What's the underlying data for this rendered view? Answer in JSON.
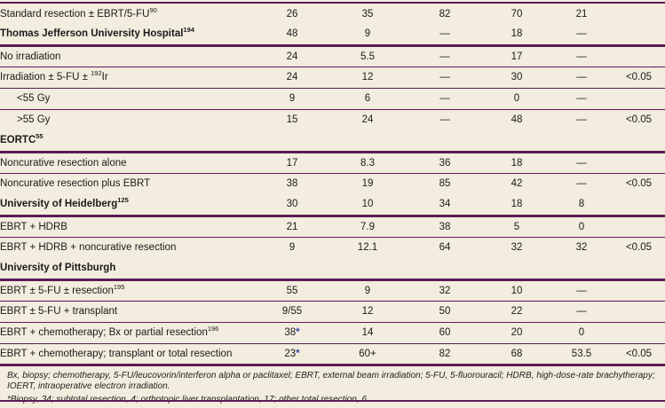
{
  "colors": {
    "background": "#f2edde",
    "rule_purple": "#5c1b55",
    "text": "#1a1a1a",
    "asterisk_blue": "#3949ab"
  },
  "table": {
    "rows": [
      {
        "label_pre": "Standard resection ± EBRT/5-FU",
        "label_sup": "90",
        "label_post": "",
        "bold": false,
        "indent": false,
        "cells": [
          "26",
          "35",
          "82",
          "70",
          "21",
          ""
        ],
        "rule": "none"
      },
      {
        "label_pre": "Thomas Jefferson University Hospital",
        "label_sup": "194",
        "label_post": "",
        "bold": true,
        "indent": false,
        "cells": [
          "48",
          "9",
          "—",
          "18",
          "—",
          ""
        ],
        "rule": "thick"
      },
      {
        "label_pre": "No irradiation",
        "label_sup": "",
        "label_post": "",
        "bold": false,
        "indent": false,
        "cells": [
          "24",
          "5.5",
          "—",
          "17",
          "—",
          ""
        ],
        "rule": "thin"
      },
      {
        "label_pre": "Irradiation ± 5-FU ± ",
        "label_sup": "192",
        "label_post": "Ir",
        "bold": false,
        "indent": false,
        "cells": [
          "24",
          "12",
          "—",
          "30",
          "—",
          "<0.05"
        ],
        "rule": "thin"
      },
      {
        "label_pre": "<55 Gy",
        "label_sup": "",
        "label_post": "",
        "bold": false,
        "indent": true,
        "cells": [
          "9",
          "6",
          "—",
          "0",
          "—",
          ""
        ],
        "rule": "thin"
      },
      {
        "label_pre": ">55 Gy",
        "label_sup": "",
        "label_post": "",
        "bold": false,
        "indent": true,
        "cells": [
          "15",
          "24",
          "—",
          "48",
          "—",
          "<0.05"
        ],
        "rule": "none"
      },
      {
        "label_pre": "EORTC",
        "label_sup": "55",
        "label_post": "",
        "bold": true,
        "indent": false,
        "cells": [
          "",
          "",
          "",
          "",
          "",
          ""
        ],
        "rule": "thick"
      },
      {
        "label_pre": "Noncurative resection alone",
        "label_sup": "",
        "label_post": "",
        "bold": false,
        "indent": false,
        "cells": [
          "17",
          "8.3",
          "36",
          "18",
          "—",
          ""
        ],
        "rule": "thin"
      },
      {
        "label_pre": "Noncurative resection plus EBRT",
        "label_sup": "",
        "label_post": "",
        "bold": false,
        "indent": false,
        "cells": [
          "38",
          "19",
          "85",
          "42",
          "—",
          "<0.05"
        ],
        "rule": "none"
      },
      {
        "label_pre": "University of Heidelberg",
        "label_sup": "125",
        "label_post": "",
        "bold": true,
        "indent": false,
        "cells": [
          "30",
          "10",
          "34",
          "18",
          "8",
          ""
        ],
        "rule": "thick"
      },
      {
        "label_pre": "EBRT + HDRB",
        "label_sup": "",
        "label_post": "",
        "bold": false,
        "indent": false,
        "cells": [
          "21",
          "7.9",
          "38",
          "5",
          "0",
          ""
        ],
        "rule": "thin"
      },
      {
        "label_pre": "EBRT + HDRB + noncurative resection",
        "label_sup": "",
        "label_post": "",
        "bold": false,
        "indent": false,
        "cells": [
          "9",
          "12.1",
          "64",
          "32",
          "32",
          "<0.05"
        ],
        "rule": "none"
      },
      {
        "label_pre": "University of Pittsburgh",
        "label_sup": "",
        "label_post": "",
        "bold": true,
        "indent": false,
        "cells": [
          "",
          "",
          "",
          "",
          "",
          ""
        ],
        "rule": "thick"
      },
      {
        "label_pre": "EBRT ± 5-FU ± resection",
        "label_sup": "195",
        "label_post": "",
        "bold": false,
        "indent": false,
        "cells": [
          "55",
          "9",
          "32",
          "10",
          "—",
          ""
        ],
        "rule": "thin"
      },
      {
        "label_pre": "EBRT ± 5-FU + transplant",
        "label_sup": "",
        "label_post": "",
        "bold": false,
        "indent": false,
        "cells": [
          "9/55",
          "12",
          "50",
          "22",
          "—",
          ""
        ],
        "rule": "thin"
      },
      {
        "label_pre": "EBRT + chemotherapy; Bx or partial resection",
        "label_sup": "196",
        "label_post": "",
        "bold": false,
        "indent": false,
        "cells": [
          "38*",
          "14",
          "60",
          "20",
          "0",
          ""
        ],
        "rule": "thin"
      },
      {
        "label_pre": "EBRT + chemotherapy; transplant or total resection",
        "label_sup": "",
        "label_post": "",
        "bold": false,
        "indent": false,
        "cells": [
          "23*",
          "60+",
          "82",
          "68",
          "53.5",
          "<0.05"
        ],
        "rule": "thick"
      }
    ]
  },
  "footnotes": {
    "abbreviations": "Bx, biopsy; chemotherapy, 5-FU/leucovorin/interferon alpha or paclitaxel; EBRT, external beam irradiation; 5-FU, 5-fluorouracil; HDRB, high-dose-rate brachytherapy; IOERT, intraoperative electron irradiation.",
    "asterisk_note": "*Biopsy, 34; subtotal resection, 4; orthotopic liver transplantation, 17; other total resection, 6."
  }
}
